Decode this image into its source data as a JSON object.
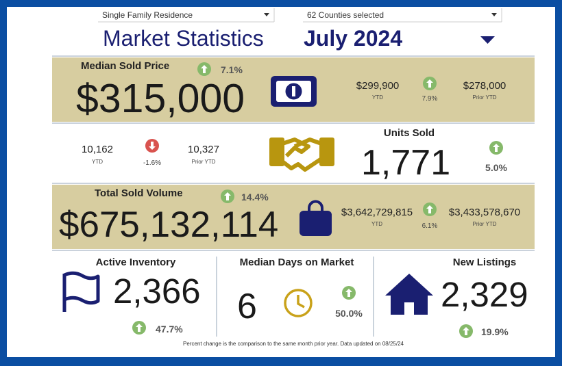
{
  "filters": {
    "property_type": "Single Family Residence",
    "counties": "62 Counties selected"
  },
  "header": {
    "title": "Market Statistics",
    "period": "July 2024"
  },
  "median_sold_price": {
    "label": "Median Sold Price",
    "value": "$315,000",
    "change": "7.1%",
    "ytd": "$299,900",
    "ytd_label": "YTD",
    "ytd_change": "7.9%",
    "prior_ytd": "$278,000",
    "prior_ytd_label": "Prior YTD"
  },
  "units_sold": {
    "label": "Units Sold",
    "value": "1,771",
    "change": "5.0%",
    "ytd": "10,162",
    "ytd_label": "YTD",
    "ytd_change": "-1.6%",
    "prior_ytd": "10,327",
    "prior_ytd_label": "Prior YTD"
  },
  "total_sold_volume": {
    "label": "Total Sold Volume",
    "value": "$675,132,114",
    "change": "14.4%",
    "ytd": "$3,642,729,815",
    "ytd_label": "YTD",
    "ytd_change": "6.1%",
    "prior_ytd": "$3,433,578,670",
    "prior_ytd_label": "Prior YTD"
  },
  "active_inventory": {
    "label": "Active Inventory",
    "value": "2,366",
    "change": "47.7%"
  },
  "median_days_on_market": {
    "label": "Median Days on Market",
    "value": "6",
    "change": "50.0%"
  },
  "new_listings": {
    "label": "New Listings",
    "value": "2,329",
    "change": "19.9%"
  },
  "footnote": "Percent change is the comparison to the same month prior year. Data updated on 08/25/24"
}
